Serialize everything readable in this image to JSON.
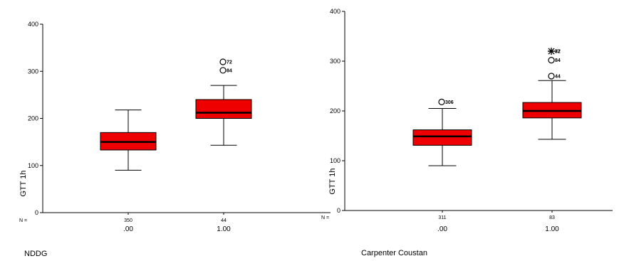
{
  "chart_data": [
    {
      "type": "boxplot",
      "title": "NDDG",
      "ylabel": "GTT 1h",
      "ylim": [
        0,
        400
      ],
      "yticks": [
        0,
        100,
        200,
        300,
        400
      ],
      "n_label": "N =",
      "categories": [
        ".00",
        "1.00"
      ],
      "n": [
        "350",
        "44"
      ],
      "fill_color": "#ee0000",
      "boxes": [
        {
          "whisker_low": 90,
          "q1": 133,
          "median": 150,
          "q3": 170,
          "whisker_high": 218,
          "outliers": []
        },
        {
          "whisker_low": 143,
          "q1": 200,
          "median": 212,
          "q3": 240,
          "whisker_high": 270,
          "outliers": [
            {
              "value": 320,
              "marker": "circle",
              "label": "72"
            },
            {
              "value": 302,
              "marker": "circle",
              "label": "84"
            }
          ]
        }
      ]
    },
    {
      "type": "boxplot",
      "title": "Carpenter Coustan",
      "ylabel": "GTT 1h",
      "ylim": [
        0,
        400
      ],
      "yticks": [
        0,
        100,
        200,
        300,
        400
      ],
      "n_label": "N =",
      "categories": [
        ".00",
        "1.00"
      ],
      "n": [
        "311",
        "83"
      ],
      "fill_color": "#ee0000",
      "boxes": [
        {
          "whisker_low": 90,
          "q1": 131,
          "median": 149,
          "q3": 162,
          "whisker_high": 205,
          "outliers": [
            {
              "value": 218,
              "marker": "circle",
              "label": "306"
            }
          ]
        },
        {
          "whisker_low": 143,
          "q1": 186,
          "median": 200,
          "q3": 217,
          "whisker_high": 261,
          "outliers": [
            {
              "value": 320,
              "marker": "star",
              "label": "72"
            },
            {
              "value": 320,
              "marker": "star",
              "label": "87"
            },
            {
              "value": 302,
              "marker": "circle",
              "label": "84"
            },
            {
              "value": 270,
              "marker": "circle",
              "label": "44"
            }
          ]
        }
      ]
    }
  ]
}
